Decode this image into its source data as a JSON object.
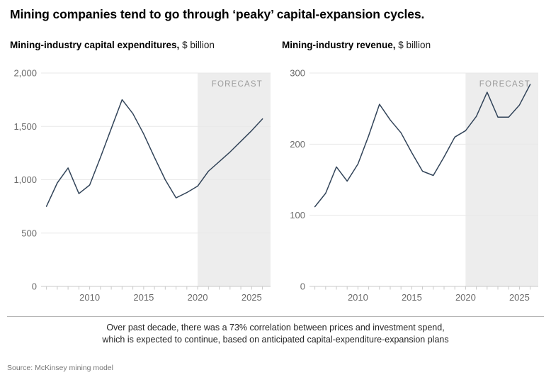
{
  "title": "Mining companies tend to go through ‘peaky’ capital-expansion cycles.",
  "charts": [
    {
      "subtitle_bold": "Mining-industry capital expenditures,",
      "subtitle_unit": "$ billion"
    },
    {
      "subtitle_bold": "Mining-industry revenue,",
      "subtitle_unit": "$ billion"
    }
  ],
  "footer": {
    "note_line1": "Over past decade, there was a 73% correlation between prices and investment spend,",
    "note_line2": "which is expected to continue, based on anticipated capital-expenditure-expansion plans",
    "source": "Source: McKinsey mining model"
  },
  "colors": {
    "line": "#324459",
    "grid": "#e8e8e8",
    "axis": "#c9c9c9",
    "tick_label": "#6b6b6b",
    "forecast_fill": "#ededed",
    "forecast_text": "#9b9b9b"
  },
  "chart_data": [
    {
      "type": "line",
      "title": "Mining-industry capital expenditures, $ billion",
      "x": [
        2006,
        2007,
        2008,
        2009,
        2010,
        2011,
        2012,
        2013,
        2014,
        2015,
        2016,
        2017,
        2018,
        2019,
        2020,
        2021,
        2022,
        2023,
        2024,
        2025,
        2026
      ],
      "values": [
        750,
        970,
        1110,
        870,
        950,
        1210,
        1480,
        1750,
        1620,
        1430,
        1210,
        1000,
        830,
        880,
        940,
        1080,
        1170,
        1260,
        1360,
        1460,
        1570
      ],
      "ylim": [
        0,
        2000
      ],
      "yticks": [
        {
          "v": 0,
          "label": "0"
        },
        {
          "v": 500,
          "label": "500"
        },
        {
          "v": 1000,
          "label": "1,000"
        },
        {
          "v": 1500,
          "label": "1,500"
        },
        {
          "v": 2000,
          "label": "2,000"
        }
      ],
      "xticks_labeled": [
        2010,
        2015,
        2020,
        2025
      ],
      "forecast_start": 2020,
      "forecast_label": "FORECAST",
      "grid": true,
      "legend": "none"
    },
    {
      "type": "line",
      "title": "Mining-industry revenue, $ billion",
      "x": [
        2006,
        2007,
        2008,
        2009,
        2010,
        2011,
        2012,
        2013,
        2014,
        2015,
        2016,
        2017,
        2018,
        2019,
        2020,
        2021,
        2022,
        2023,
        2024,
        2025,
        2026
      ],
      "values": [
        112,
        131,
        168,
        148,
        172,
        212,
        256,
        234,
        216,
        188,
        162,
        156,
        182,
        210,
        219,
        239,
        273,
        238,
        238,
        255,
        284
      ],
      "ylim": [
        0,
        300
      ],
      "yticks": [
        {
          "v": 0,
          "label": "0"
        },
        {
          "v": 100,
          "label": "100"
        },
        {
          "v": 200,
          "label": "200"
        },
        {
          "v": 300,
          "label": "300"
        }
      ],
      "xticks_labeled": [
        2010,
        2015,
        2020,
        2025
      ],
      "forecast_start": 2020,
      "forecast_label": "FORECAST",
      "grid": true,
      "legend": "none"
    }
  ]
}
